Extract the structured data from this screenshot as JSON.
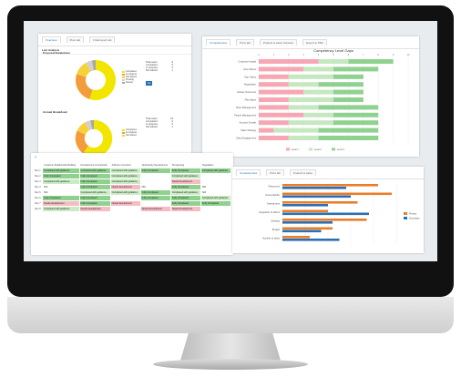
{
  "left_panel": {
    "tabs": [
      {
        "label": "Overview"
      },
      {
        "label": "Pivot tab"
      },
      {
        "label": "Final report tab"
      }
    ],
    "section_title": "Last Analysis",
    "chart1": {
      "title": "Proposal Breakdown",
      "fields": [
        {
          "label": "Total users",
          "value": "9"
        },
        {
          "label": "Completed",
          "value": "5"
        },
        {
          "label": "In progress",
          "value": "3"
        },
        {
          "label": "Not started",
          "value": "1"
        }
      ],
      "button_label": "Go"
    },
    "chart2": {
      "title": "Annual Breakdown",
      "fields": [
        {
          "label": "Total users",
          "value": "15"
        },
        {
          "label": "Completed",
          "value": "9"
        },
        {
          "label": "In progress",
          "value": "5"
        },
        {
          "label": "Not started",
          "value": "1"
        }
      ]
    }
  },
  "donut_legend": [
    "Completed",
    "In progress",
    "Not started",
    "Pending",
    "Review"
  ],
  "donut_colors": [
    "#f2e600",
    "#f39c3b",
    "#f6d23a",
    "#d0d0d0",
    "#a8a8a8"
  ],
  "donut1_values": [
    55,
    25,
    12,
    5,
    3
  ],
  "donut2_values": [
    60,
    22,
    10,
    5,
    3
  ],
  "right_panel": {
    "tabs": [
      {
        "label": "Competencies"
      },
      {
        "label": "Pivot tab"
      },
      {
        "label": "Product & sales Success"
      },
      {
        "label": "Export to PDF"
      }
    ]
  },
  "chart_data": [
    {
      "type": "bar",
      "title": "Competency Level Gaps",
      "categories": [
        "Customer Insight",
        "Core Values",
        "Opp. Mgmt",
        "Negotiation",
        "Deliver Outcomes",
        "Plan Mgmt",
        "Team Management",
        "People Management",
        "Account Growth",
        "Sales Strategy",
        "Client Engagement"
      ],
      "series": [
        {
          "name": "Level 1",
          "color": "#f7a6b3",
          "values": [
            4,
            3,
            2,
            2,
            3,
            2,
            2,
            3,
            2,
            1,
            2
          ]
        },
        {
          "name": "Level 2",
          "color": "#c5e8c0",
          "values": [
            2,
            2,
            3,
            2,
            2,
            3,
            2,
            2,
            3,
            3,
            2
          ]
        },
        {
          "name": "Level 3",
          "color": "#8fd18f",
          "values": [
            3,
            3,
            2,
            3,
            2,
            2,
            4,
            3,
            3,
            4,
            4
          ]
        }
      ],
      "x_ticks": [
        "0",
        "1",
        "2",
        "3",
        "4",
        "5",
        "6",
        "7",
        "8",
        "9",
        "10"
      ],
      "xlim": [
        0,
        10
      ]
    },
    {
      "type": "bar",
      "categories": [
        "Resources",
        "Accountability",
        "Assessment",
        "Integration of efforts",
        "Strategy",
        "Budget",
        "Number of tasks"
      ],
      "series": [
        {
          "name": "Primary",
          "color": "#e87d2a",
          "values": [
            42,
            48,
            33,
            20,
            37,
            22,
            12
          ]
        },
        {
          "name": "Secondary",
          "color": "#2a6fb5",
          "values": [
            28,
            30,
            20,
            38,
            22,
            17,
            25
          ]
        }
      ],
      "xlim": [
        0,
        50
      ]
    }
  ],
  "table_panel": {
    "headers": [
      "",
      "Customer Relationship Building",
      "Development of proposals",
      "Address of product",
      "Opportunity Development",
      "Prospecting",
      "Negotiation"
    ],
    "rows": [
      {
        "name": "Rep 1",
        "cells": [
          "Completed with guidance",
          "Completed with guidance",
          "Completed with guidance",
          "Fully Completed",
          "Fully Completed",
          "Completed with guidance"
        ],
        "colors": [
          "green",
          "green",
          "lgreen",
          "green",
          "green",
          "green"
        ]
      },
      {
        "name": "Rep 2",
        "cells": [
          "Fully Completed",
          "Fully Completed",
          "Completed with guidance",
          "",
          "Completed with guidance",
          ""
        ],
        "colors": [
          "green",
          "green",
          "lgreen",
          "white",
          "lgreen",
          "white"
        ]
      },
      {
        "name": "Rep 3",
        "cells": [
          "Completed with guidance",
          "Fully Completed",
          "Completed with guidance",
          "",
          "Needs development",
          ""
        ],
        "colors": [
          "lgreen",
          "green",
          "lgreen",
          "white",
          "pink",
          "white"
        ]
      },
      {
        "name": "Rep 4",
        "cells": [
          "N/A",
          "Fully Completed",
          "Needs development",
          "N/A",
          "Fully Completed",
          "N/A"
        ],
        "colors": [
          "white",
          "green",
          "pink",
          "white",
          "green",
          "white"
        ]
      },
      {
        "name": "Rep 5",
        "cells": [
          "N/A",
          "Completed with guidance",
          "Completed with guidance",
          "Fully Completed",
          "Completed with guidance",
          "N/A"
        ],
        "colors": [
          "white",
          "lgreen",
          "lgreen",
          "green",
          "lgreen",
          "white"
        ]
      },
      {
        "name": "Rep 6",
        "cells": [
          "Fully Completed",
          "Fully Completed",
          "",
          "Fully Completed",
          "Fully Completed",
          "Completed with guidance"
        ],
        "colors": [
          "green",
          "green",
          "white",
          "green",
          "green",
          "lgreen"
        ]
      },
      {
        "name": "Rep 7",
        "cells": [
          "Needs development",
          "Fully Completed",
          "Needs development",
          "",
          "Fully Completed",
          "Fully Completed"
        ],
        "colors": [
          "pink",
          "green",
          "pink",
          "white",
          "green",
          "green"
        ]
      },
      {
        "name": "Rep 8",
        "cells": [
          "Completed with guidance",
          "Needs development",
          "",
          "Needs development",
          "Needs development",
          ""
        ],
        "colors": [
          "lgreen",
          "pink",
          "white",
          "pink",
          "pink",
          "white"
        ]
      }
    ]
  },
  "bottom_right_panel": {
    "tabs": [
      {
        "label": "Competencies"
      },
      {
        "label": "Pivot tab"
      },
      {
        "label": "Product & sales"
      }
    ]
  }
}
